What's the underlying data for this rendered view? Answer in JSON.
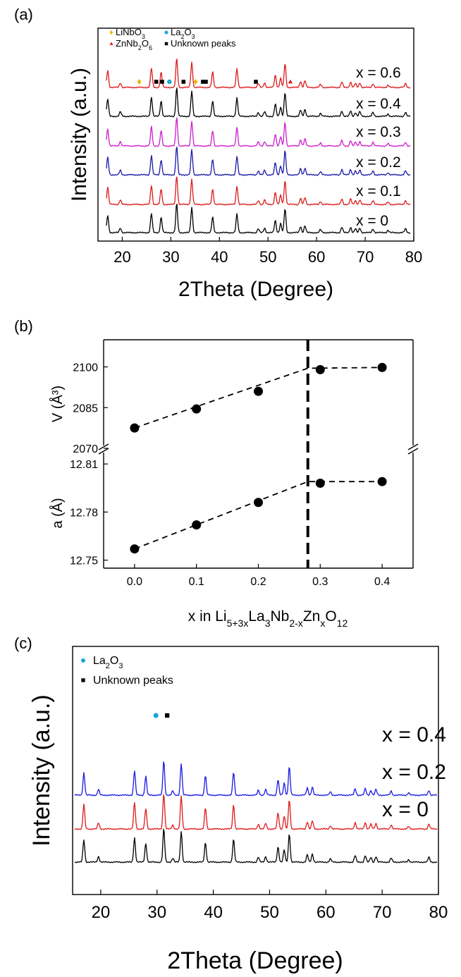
{
  "chart_data": [
    {
      "panel": "(a)",
      "type": "line",
      "xlabel": "2Theta (Degree)",
      "ylabel": "Intensity (a.u.)",
      "xlim": [
        15,
        80
      ],
      "xticks": [
        20,
        30,
        40,
        50,
        60,
        70,
        80
      ],
      "peaks_2theta": [
        17.0,
        19.6,
        26.0,
        28.0,
        31.2,
        34.3,
        38.6,
        43.6,
        48.0,
        49.3,
        51.5,
        52.6,
        53.5,
        56.7,
        57.6,
        60.8,
        65.2,
        67.0,
        68.0,
        68.9,
        71.6,
        74.7,
        78.3
      ],
      "series": [
        {
          "name": "x = 0",
          "color": "#000000",
          "heights": [
            45,
            12,
            50,
            40,
            75,
            65,
            40,
            48,
            10,
            12,
            32,
            24,
            62,
            16,
            18,
            8,
            14,
            14,
            10,
            12,
            10,
            6,
            10
          ]
        },
        {
          "name": "x = 0.1",
          "color": "#dd1b1b",
          "heights": [
            45,
            12,
            50,
            40,
            75,
            65,
            40,
            48,
            10,
            12,
            32,
            24,
            62,
            16,
            18,
            8,
            14,
            14,
            10,
            12,
            10,
            6,
            10
          ]
        },
        {
          "name": "x = 0.2",
          "color": "#1a1aa8",
          "heights": [
            45,
            12,
            50,
            40,
            75,
            65,
            40,
            48,
            10,
            12,
            32,
            24,
            62,
            16,
            18,
            8,
            14,
            14,
            10,
            12,
            10,
            6,
            10
          ]
        },
        {
          "name": "x = 0.3",
          "color": "#cc1fcc",
          "heights": [
            45,
            12,
            50,
            40,
            75,
            65,
            40,
            48,
            10,
            12,
            32,
            24,
            62,
            16,
            18,
            8,
            14,
            14,
            10,
            12,
            10,
            6,
            10
          ]
        },
        {
          "name": "x = 0.4",
          "color": "#000000",
          "heights": [
            45,
            12,
            50,
            40,
            75,
            65,
            40,
            48,
            10,
            12,
            32,
            24,
            62,
            16,
            18,
            8,
            14,
            14,
            10,
            12,
            10,
            6,
            10
          ]
        },
        {
          "name": "x = 0.6",
          "color": "#dd1b1b",
          "heights": [
            45,
            12,
            50,
            40,
            75,
            65,
            40,
            48,
            10,
            12,
            32,
            24,
            62,
            16,
            18,
            8,
            14,
            14,
            10,
            12,
            10,
            6,
            10
          ]
        }
      ],
      "legend": [
        {
          "marker": "diamond",
          "color": "#f0b400",
          "label": "LiNbO",
          "sub": "3",
          "tail": ""
        },
        {
          "marker": "circle",
          "color": "#1aa6d9",
          "label": "La",
          "sub": "2",
          "tail": "O",
          "sub2": "3"
        },
        {
          "marker": "triangle",
          "color": "#dd1b1b",
          "label": "ZnNb",
          "sub": "2",
          "tail": "O",
          "sub2": "6"
        },
        {
          "marker": "square",
          "color": "#000000",
          "label": "Unknown peaks"
        }
      ],
      "phase_markers": [
        {
          "marker": "diamond",
          "color": "#f0b400",
          "x": 23.5
        },
        {
          "marker": "square",
          "color": "#000000",
          "x": 27.0
        },
        {
          "marker": "square",
          "color": "#000000",
          "x": 28.2
        },
        {
          "marker": "circle",
          "color": "#1aa6d9",
          "x": 29.7
        },
        {
          "marker": "square",
          "color": "#000000",
          "x": 32.6
        },
        {
          "marker": "diamond",
          "color": "#f0b400",
          "x": 35.1
        },
        {
          "marker": "square",
          "color": "#000000",
          "x": 36.6
        },
        {
          "marker": "square",
          "color": "#000000",
          "x": 37.2
        },
        {
          "marker": "square",
          "color": "#000000",
          "x": 47.5
        },
        {
          "marker": "triangle",
          "color": "#dd1b1b",
          "x": 54.6
        }
      ]
    },
    {
      "panel": "(b)",
      "type": "scatter",
      "xlabel": "x in Li5+3xLa3Nb2-xZnxO12",
      "xlabel_parts": [
        {
          "t": "x in Li",
          "s": false
        },
        {
          "t": "5+3x",
          "s": true
        },
        {
          "t": "La",
          "s": false
        },
        {
          "t": "3",
          "s": true
        },
        {
          "t": "Nb",
          "s": false
        },
        {
          "t": "2-x",
          "s": true
        },
        {
          "t": "Zn",
          "s": false
        },
        {
          "t": "x",
          "s": true
        },
        {
          "t": "O",
          "s": false
        },
        {
          "t": "12",
          "s": true
        }
      ],
      "xlim": [
        -0.05,
        0.45
      ],
      "xticks": [
        "0.0",
        "0.1",
        "0.2",
        "0.3",
        "0.4"
      ],
      "vertical_line_x": 0.28,
      "top": {
        "ylabel": "V (Å³)",
        "ylim": [
          2070,
          2110
        ],
        "yticks": [
          2070,
          2085,
          2100
        ],
        "x": [
          0.0,
          0.1,
          0.2,
          0.3,
          0.4
        ],
        "y": [
          2077.5,
          2084.5,
          2091.0,
          2099.0,
          2099.8
        ],
        "fit": [
          [
            0.0,
            2077.5
          ],
          [
            0.28,
            2099.5
          ],
          [
            0.4,
            2099.8
          ]
        ]
      },
      "bottom": {
        "ylabel": "a (Å)",
        "ylim": [
          12.745,
          12.818
        ],
        "yticks": [
          12.75,
          12.78,
          12.81
        ],
        "x": [
          0.0,
          0.1,
          0.2,
          0.3,
          0.4
        ],
        "y": [
          12.757,
          12.772,
          12.786,
          12.798,
          12.799
        ],
        "fit": [
          [
            0.0,
            12.757
          ],
          [
            0.28,
            12.799
          ],
          [
            0.4,
            12.799
          ]
        ]
      }
    },
    {
      "panel": "(c)",
      "type": "line",
      "xlabel": "2Theta (Degree)",
      "ylabel": "Intensity (a.u.)",
      "xlim": [
        15,
        80
      ],
      "xticks": [
        20,
        30,
        40,
        50,
        60,
        70,
        80
      ],
      "peaks_2theta": [
        17.0,
        19.6,
        26.0,
        28.0,
        31.2,
        32.8,
        34.3,
        38.6,
        43.6,
        48.0,
        49.3,
        51.5,
        52.6,
        53.5,
        56.7,
        57.6,
        60.8,
        65.2,
        67.0,
        68.0,
        68.9,
        71.6,
        74.7,
        78.3
      ],
      "series": [
        {
          "name": "x = 0",
          "color": "#000000",
          "heights": [
            55,
            14,
            60,
            46,
            82,
            10,
            75,
            48,
            56,
            12,
            14,
            38,
            30,
            70,
            18,
            20,
            8,
            16,
            16,
            12,
            14,
            10,
            6,
            12
          ]
        },
        {
          "name": "x = 0.2",
          "color": "#dd1b1b",
          "heights": [
            60,
            15,
            65,
            50,
            88,
            10,
            80,
            52,
            60,
            12,
            14,
            40,
            32,
            72,
            18,
            20,
            8,
            16,
            16,
            12,
            14,
            10,
            6,
            12
          ]
        },
        {
          "name": "x = 0.4",
          "color": "#1a1ae6",
          "heights": [
            55,
            14,
            60,
            46,
            85,
            10,
            78,
            48,
            56,
            12,
            14,
            38,
            30,
            70,
            18,
            20,
            8,
            16,
            16,
            12,
            14,
            10,
            6,
            12
          ]
        }
      ],
      "legend": [
        {
          "marker": "circle",
          "color": "#1aa6d9",
          "label": "La",
          "sub": "2",
          "tail": "O",
          "sub2": "3"
        },
        {
          "marker": "square",
          "color": "#000000",
          "label": "Unknown peaks"
        }
      ],
      "phase_markers": [
        {
          "marker": "circle",
          "color": "#1aa6d9",
          "x": 29.8
        },
        {
          "marker": "square",
          "color": "#000000",
          "x": 31.8
        }
      ]
    }
  ]
}
